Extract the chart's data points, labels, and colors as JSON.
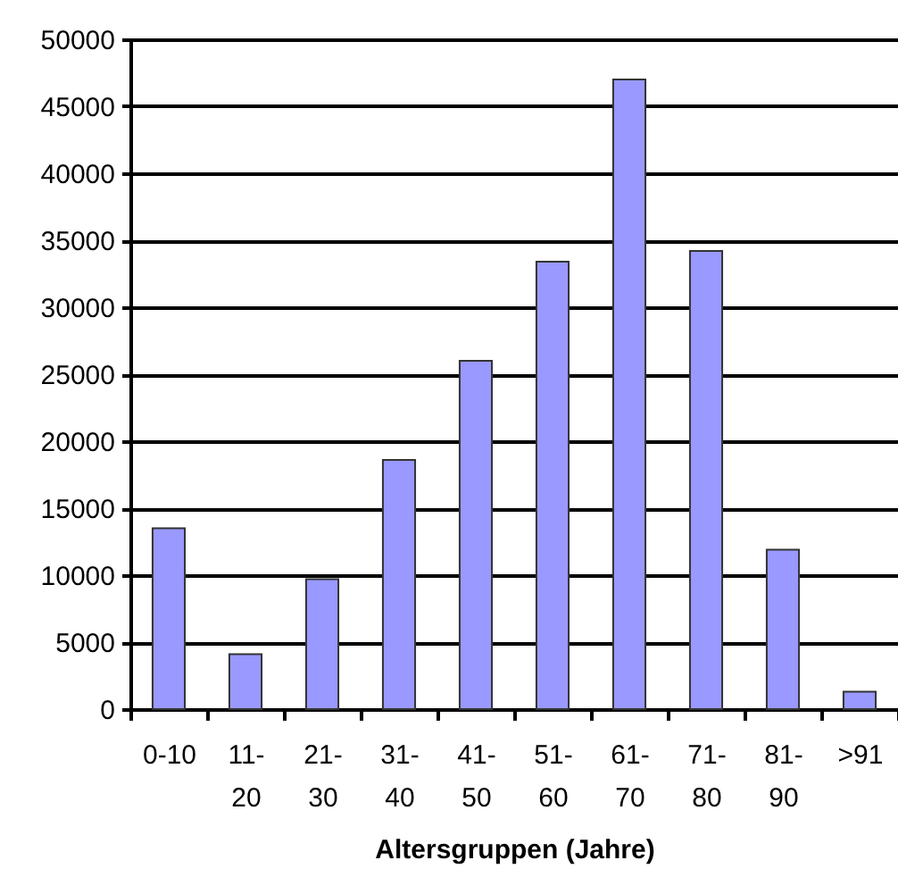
{
  "chart_data": {
    "type": "bar",
    "xlabel": "Altersgruppen (Jahre)",
    "categories": [
      "0-10",
      "11-\n20",
      "21-\n30",
      "31-\n40",
      "41-\n50",
      "51-\n60",
      "61-\n70",
      "71-\n80",
      "81-\n90",
      ">91"
    ],
    "series": [
      {
        "color": "#9999ff",
        "values": [
          13500,
          4100,
          9700,
          18600,
          26000,
          33400,
          47000,
          34200,
          11900,
          1300
        ]
      }
    ],
    "ylim": [
      0,
      50000
    ],
    "yticks": [
      0,
      5000,
      10000,
      15000,
      20000,
      25000,
      30000,
      35000,
      40000,
      45000,
      50000
    ],
    "grid": "y"
  }
}
